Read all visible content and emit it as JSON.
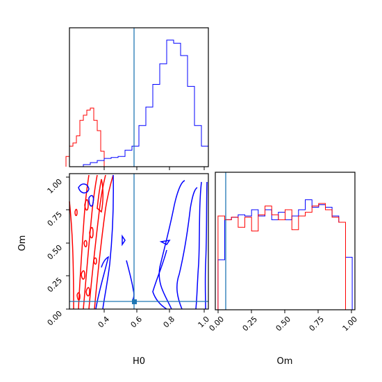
{
  "chart_data": {
    "type": "corner-plot",
    "colors": {
      "run_a": "#ff0000",
      "run_b": "#0000ff",
      "truth": "#1f77b4"
    },
    "truth": {
      "H0": 0.59,
      "Om": 0.06
    },
    "panels": [
      {
        "kind": "histogram",
        "parameter": "H0",
        "xlim": [
          0.22,
          1.02
        ],
        "series": [
          {
            "color": "red",
            "bins": [
              0.2,
              0.22,
              0.24,
              0.26,
              0.28,
              0.3,
              0.32,
              0.34,
              0.36,
              0.38,
              0.4,
              0.42,
              0.44
            ],
            "counts": [
              10,
              20,
              23,
              30,
              45,
              50,
              55,
              57,
              45,
              35,
              15,
              0
            ]
          },
          {
            "color": "blue",
            "bins": [
              0.3,
              0.34,
              0.38,
              0.42,
              0.46,
              0.5,
              0.54,
              0.58,
              0.62,
              0.66,
              0.7,
              0.74,
              0.78,
              0.82,
              0.86,
              0.9,
              0.94,
              0.98,
              1.02
            ],
            "counts": [
              2,
              4,
              6,
              8,
              9,
              10,
              16,
              20,
              40,
              58,
              80,
              100,
              123,
              120,
              108,
              78,
              40,
              20
            ]
          }
        ],
        "truth_line": 0.59
      },
      {
        "kind": "contour",
        "x": "H0",
        "y": "Om",
        "xlim": [
          0.22,
          1.02
        ],
        "ylim": [
          0.0,
          1.02
        ],
        "xticks": [
          "0.4",
          "0.6",
          "0.8",
          "1.0"
        ],
        "yticks": [
          "0.00",
          "0.25",
          "0.50",
          "0.75",
          "1.00"
        ],
        "xlabel": "H0",
        "ylabel": "Om",
        "truth_point": [
          0.59,
          0.06
        ]
      },
      {
        "kind": "histogram",
        "parameter": "Om",
        "xlim": [
          -0.02,
          1.02
        ],
        "xticks": [
          "0.00",
          "0.25",
          "0.50",
          "0.75",
          "1.00"
        ],
        "xlabel": "Om",
        "series": [
          {
            "color": "blue",
            "bins": [
              0.0,
              0.05,
              0.1,
              0.15,
              0.2,
              0.25,
              0.3,
              0.35,
              0.4,
              0.45,
              0.5,
              0.55,
              0.6,
              0.65,
              0.7,
              0.75,
              0.8,
              0.85,
              0.9,
              0.95,
              1.0
            ],
            "counts": [
              40,
              72,
              74,
              76,
              75,
              80,
              75,
              80,
              72,
              78,
              72,
              75,
              80,
              88,
              82,
              84,
              82,
              75,
              70,
              42
            ]
          },
          {
            "color": "red",
            "bins": [
              0.0,
              0.05,
              0.1,
              0.15,
              0.2,
              0.25,
              0.3,
              0.35,
              0.4,
              0.45,
              0.5,
              0.55,
              0.6,
              0.65,
              0.7,
              0.75,
              0.8,
              0.85,
              0.9,
              0.95,
              1.0
            ],
            "counts": [
              75,
              72,
              74,
              66,
              74,
              63,
              76,
              83,
              76,
              72,
              80,
              64,
              75,
              78,
              83,
              85,
              80,
              74,
              70,
              0
            ]
          }
        ],
        "truth_line": 0.06
      }
    ]
  }
}
